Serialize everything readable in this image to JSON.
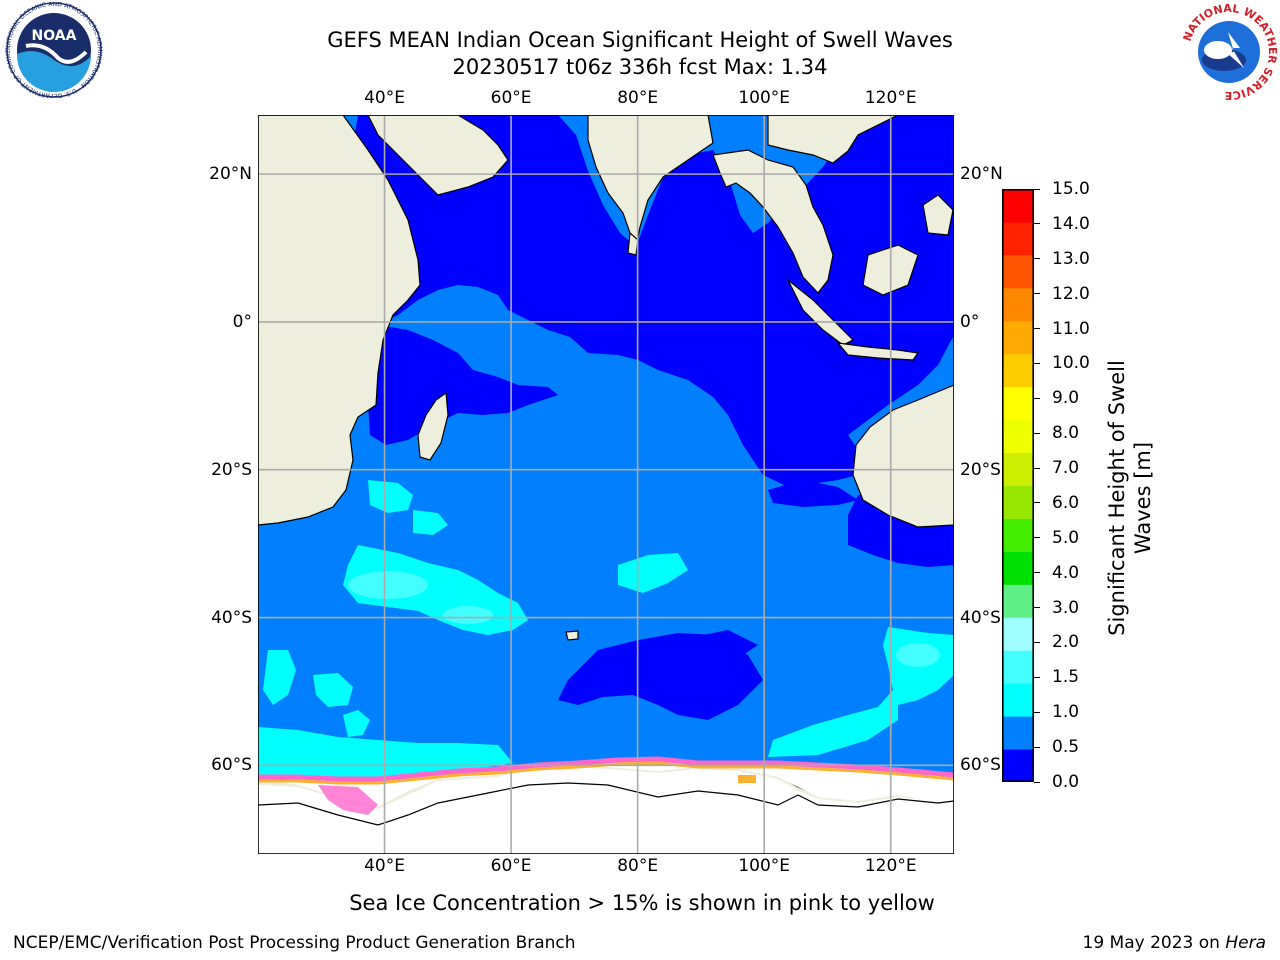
{
  "header": {
    "title_line1": "GEFS MEAN Indian Ocean Significant Height of Swell Waves",
    "title_line2": "20230517 t06z 336h fcst   Max: 1.34"
  },
  "map": {
    "lon_ticks_top": [
      "40°E",
      "60°E",
      "80°E",
      "100°E",
      "120°E"
    ],
    "lon_ticks_bottom": [
      "40°E",
      "60°E",
      "80°E",
      "100°E",
      "120°E"
    ],
    "lat_ticks_left": [
      "20°N",
      "0°",
      "20°S",
      "40°S",
      "60°S"
    ],
    "lat_ticks_right": [
      "20°N",
      "0°",
      "20°S",
      "40°S",
      "60°S"
    ],
    "lon_values": [
      40,
      60,
      80,
      100,
      120
    ],
    "lat_values": [
      20,
      0,
      -20,
      -40,
      -60
    ],
    "lon_range": [
      20,
      130
    ],
    "lat_range": [
      -72,
      28
    ],
    "grid": true,
    "colors": {
      "land": "#eeeedd",
      "ice": "#ffffff",
      "ocean_base": "#0080ff",
      "ocean_low": "#0000ff",
      "ocean_mid": "#00ffff",
      "ice_edge": "#ff66cc",
      "ice_edge2": "#ffb030"
    }
  },
  "colorbar": {
    "title_line1": "Significant Height of Swell",
    "title_line2": "Waves [m]",
    "labels": [
      "15.0",
      "14.0",
      "13.0",
      "12.0",
      "11.0",
      "10.0",
      "9.0",
      "8.0",
      "7.0",
      "6.0",
      "5.0",
      "4.0",
      "3.0",
      "2.0",
      "1.5",
      "1.0",
      "0.5",
      "0.0"
    ],
    "levels": [
      0,
      0.5,
      1.0,
      1.5,
      2.0,
      3.0,
      4.0,
      5.0,
      6.0,
      7.0,
      8.0,
      9.0,
      10.0,
      11.0,
      12.0,
      13.0,
      14.0,
      15.0
    ],
    "colors": [
      "#0000ff",
      "#0080ff",
      "#00ffff",
      "#44ffff",
      "#a0ffff",
      "#60f088",
      "#00e000",
      "#44ee00",
      "#99e600",
      "#ccee00",
      "#eeff00",
      "#ffff00",
      "#ffcc00",
      "#ffaa00",
      "#ff8800",
      "#ff5500",
      "#ff2200",
      "#ff0000"
    ]
  },
  "annotation": "Sea Ice Concentration > 15% is shown in pink to yellow",
  "footer": {
    "left": "NCEP/EMC/Verification Post Processing Product Generation Branch",
    "right_date": "19 May 2023 on ",
    "right_host": "Hera"
  },
  "logos": {
    "noaa_text": "NOAA",
    "noaa_ring": "NATIONAL OCEANIC AND ATMOSPHERIC ADMINISTRATION · U.S. DEPARTMENT OF COMMERCE",
    "nws_ring": "NATIONAL WEATHER SERVICE"
  }
}
